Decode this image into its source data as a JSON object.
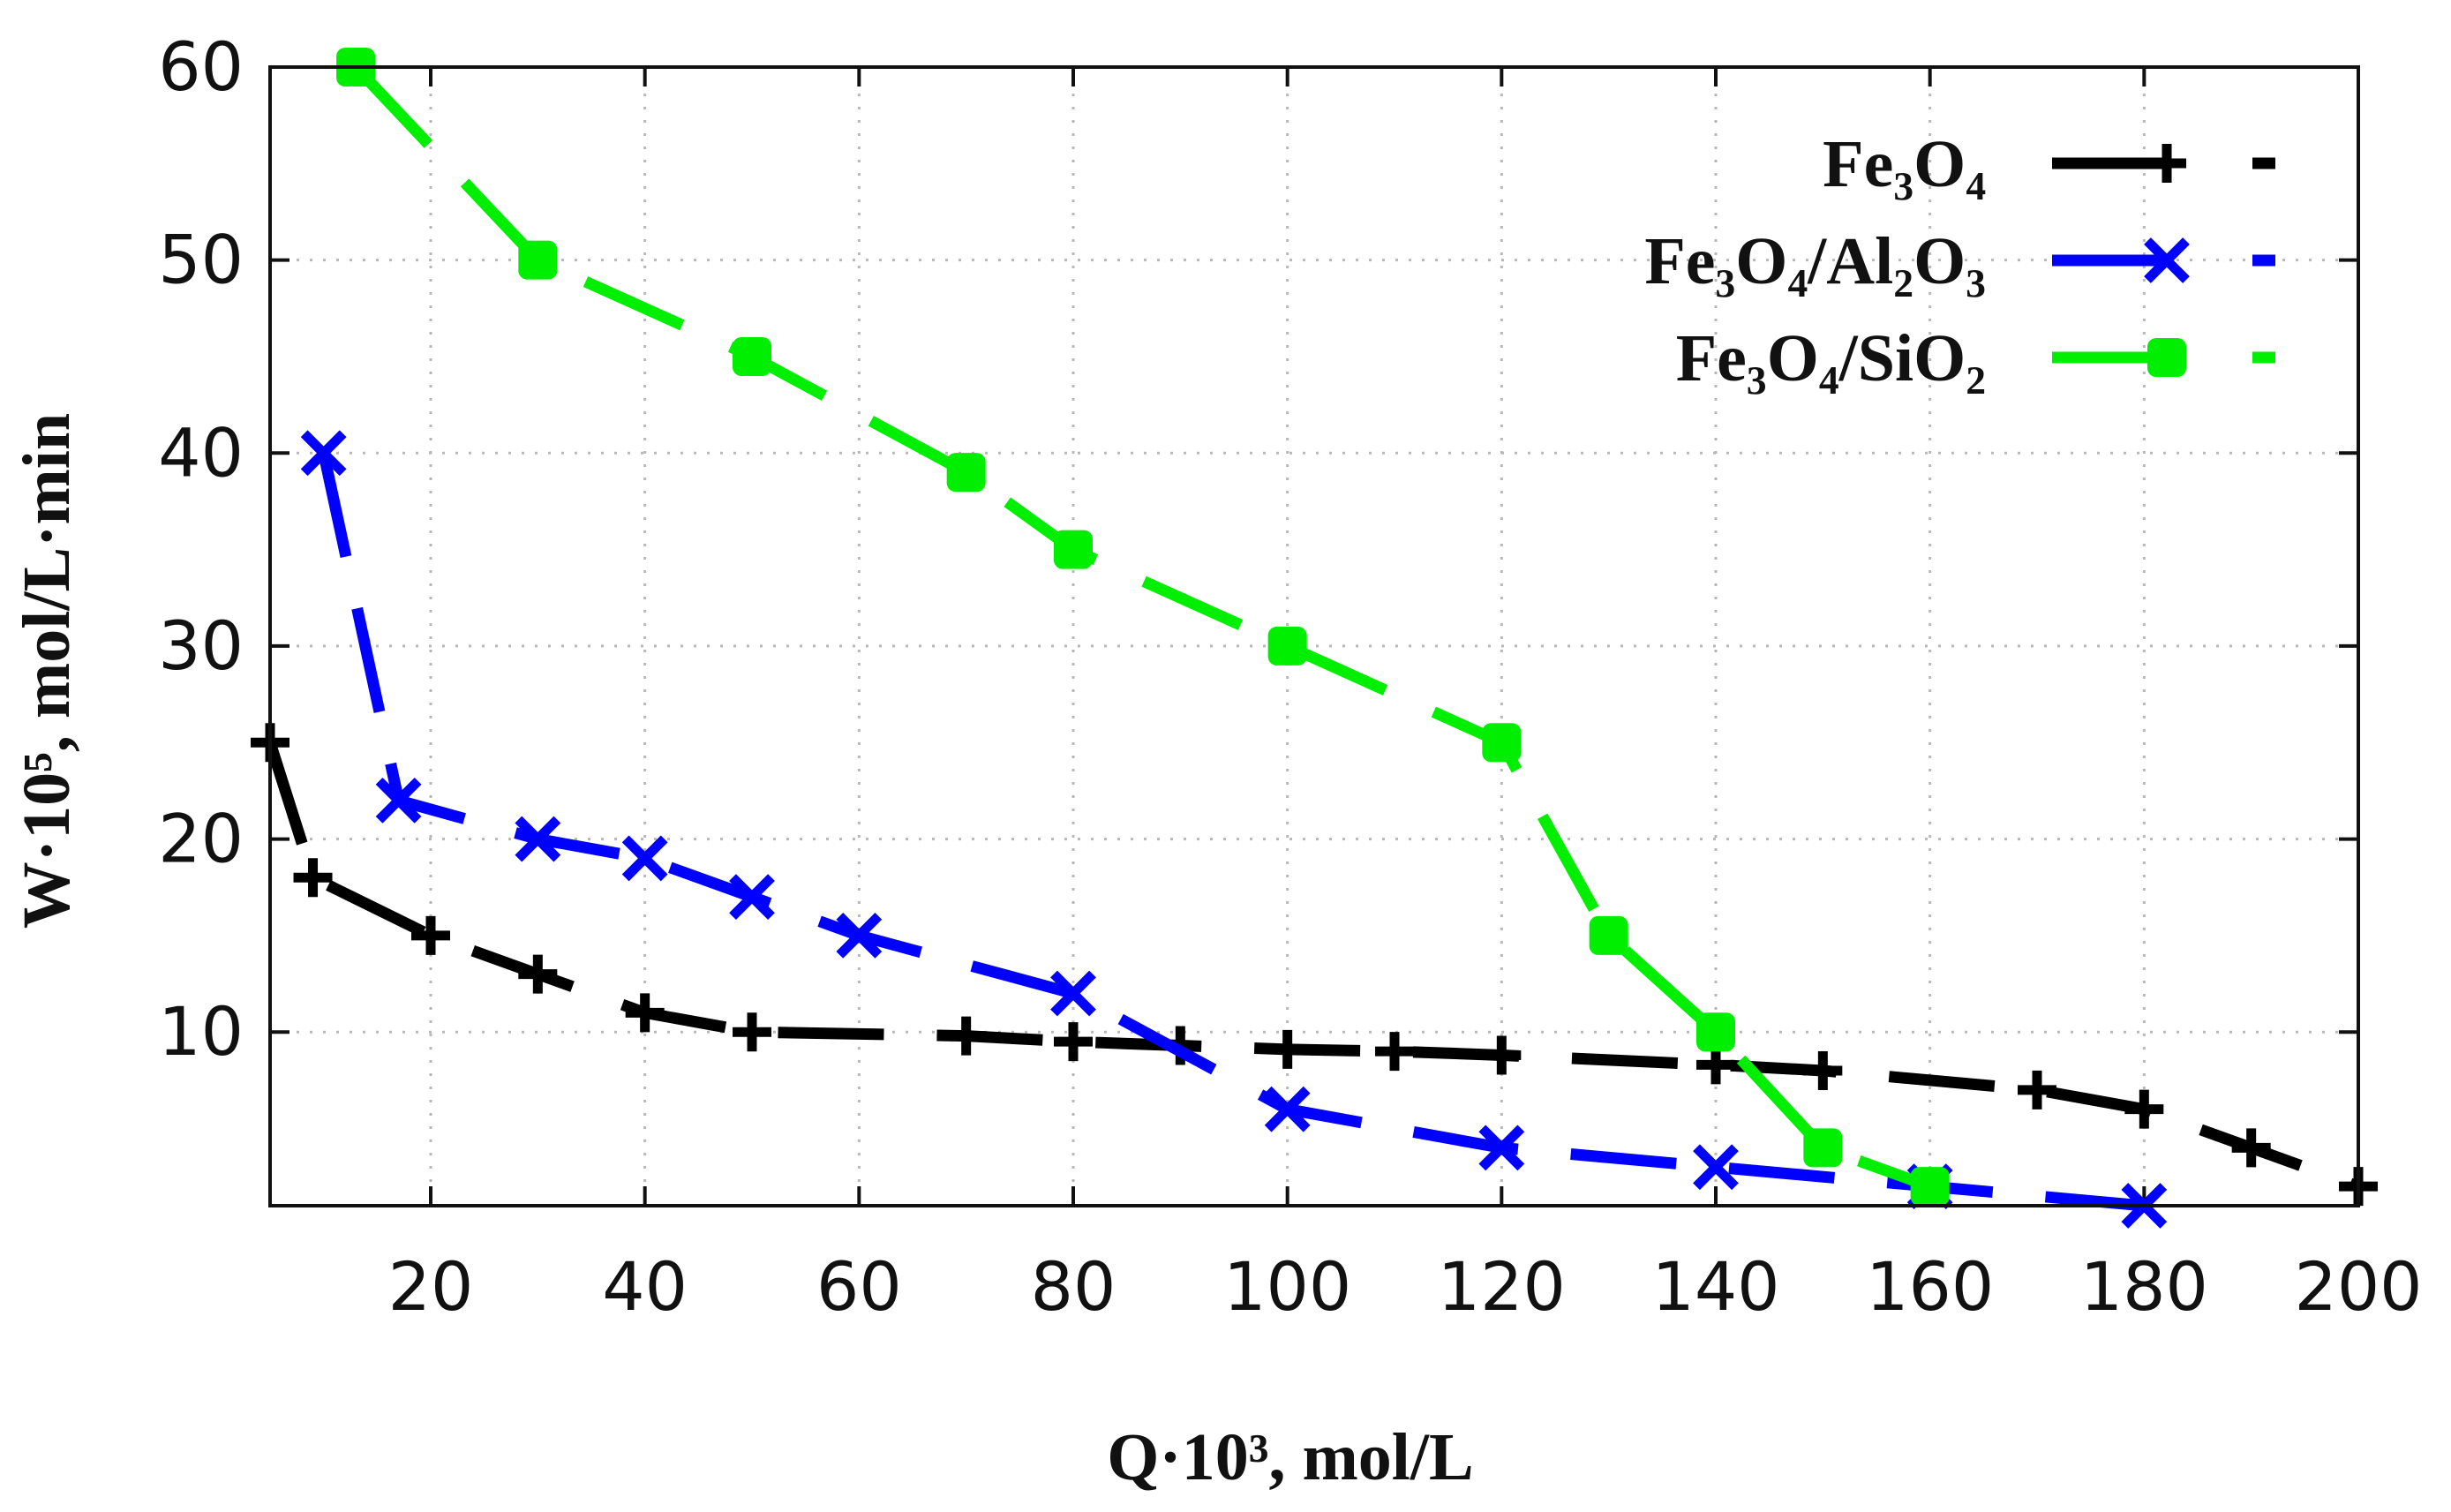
{
  "chart_data": {
    "type": "line",
    "title": "",
    "xlabel": "Q·10³, mol/L",
    "ylabel": "W·10⁵, mol/L·min",
    "xlim": [
      5,
      200
    ],
    "ylim": [
      1,
      60
    ],
    "x_ticks": [
      20,
      40,
      60,
      80,
      100,
      120,
      140,
      160,
      180,
      200
    ],
    "y_ticks": [
      10,
      20,
      30,
      40,
      50,
      60
    ],
    "grid": true,
    "legend_position": "top-right",
    "series": [
      {
        "name": "Fe₃O₄",
        "color": "#000000",
        "marker": "plus",
        "line_style": "dashed",
        "x": [
          5,
          9,
          20,
          30,
          40,
          50,
          70,
          80,
          90,
          100,
          110,
          120,
          140,
          150,
          170,
          180,
          190,
          200
        ],
        "y": [
          25,
          18,
          15,
          13,
          11,
          10,
          9.8,
          9.5,
          9.3,
          9.1,
          9,
          8.8,
          8.3,
          8,
          7,
          6,
          4,
          2
        ]
      },
      {
        "name": "Fe₃O₄/Al₂O₃",
        "color": "#0000ff",
        "marker": "cross",
        "line_style": "dashed",
        "x": [
          10,
          17,
          30,
          40,
          50,
          60,
          80,
          100,
          120,
          140,
          160,
          180
        ],
        "y": [
          40,
          22,
          20,
          19,
          17,
          15,
          12,
          6,
          4,
          3,
          2,
          1
        ]
      },
      {
        "name": "Fe₃O₄/SiO₂",
        "color": "#00ee00",
        "marker": "filled-square",
        "line_style": "dashed",
        "x": [
          13,
          30,
          50,
          70,
          80,
          100,
          120,
          130,
          140,
          150,
          160
        ],
        "y": [
          60,
          50,
          45,
          39,
          35,
          30,
          25,
          15,
          10,
          4,
          2
        ]
      }
    ]
  }
}
